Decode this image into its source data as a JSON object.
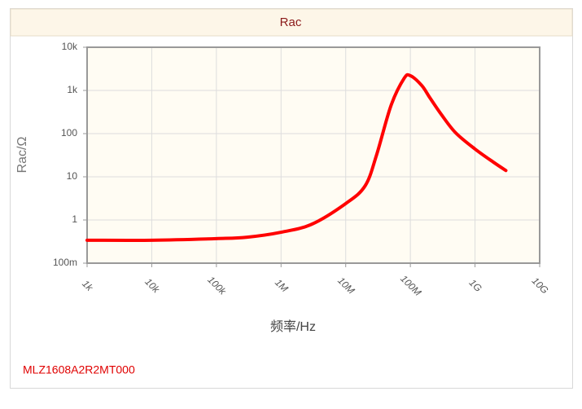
{
  "chart_data": {
    "type": "line",
    "title": "Rac",
    "x_label": "频率/Hz",
    "y_label": "Rac/Ω",
    "part_number": "MLZ1608A2R2MT000",
    "x": [
      1000,
      10000,
      100000,
      300000,
      1000000,
      3000000,
      10000000,
      20000000,
      30000000,
      50000000,
      80000000,
      100000000,
      150000000,
      200000000,
      300000000,
      500000000,
      1000000000,
      2000000000,
      3000000000
    ],
    "values": [
      0.34,
      0.34,
      0.37,
      0.4,
      0.52,
      0.8,
      2.4,
      6.2,
      32,
      440,
      1900,
      2200,
      1300,
      680,
      280,
      105,
      44,
      21,
      14
    ],
    "color": "#ff0000",
    "xlog": true,
    "ylog": true,
    "grid": true,
    "xlim": [
      1000,
      10000000000
    ],
    "xticks": [
      {
        "value": 1000,
        "label": "1k"
      },
      {
        "value": 10000,
        "label": "10k"
      },
      {
        "value": 100000,
        "label": "100k"
      },
      {
        "value": 1000000,
        "label": "1M"
      },
      {
        "value": 10000000,
        "label": "10M"
      },
      {
        "value": 100000000,
        "label": "100M"
      },
      {
        "value": 1000000000,
        "label": "1G"
      },
      {
        "value": 10000000000,
        "label": "10G"
      }
    ],
    "ylim": [
      0.1,
      10000
    ],
    "yticks": [
      {
        "value": 0.1,
        "label": "100m"
      },
      1,
      10,
      100,
      {
        "value": 1000,
        "label": "1k"
      },
      {
        "value": 10000,
        "label": "10k"
      }
    ]
  }
}
